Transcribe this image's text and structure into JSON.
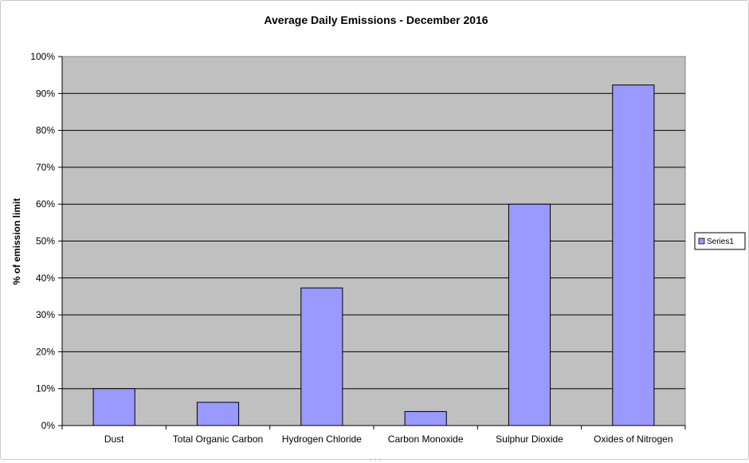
{
  "chart_data": {
    "type": "bar",
    "title": "Average Daily Emissions - December 2016",
    "xlabel": "",
    "ylabel": "% of emission limit",
    "categories": [
      "Dust",
      "Total Organic Carbon",
      "Hydrogen Chloride",
      "Carbon Monoxide",
      "Sulphur Dioxide",
      "Oxides of Nitrogen"
    ],
    "series": [
      {
        "name": "Series1",
        "values": [
          10,
          6.3,
          37.3,
          3.8,
          60,
          92.3
        ]
      }
    ],
    "ylim": [
      0,
      100
    ],
    "yticks": [
      0,
      10,
      20,
      30,
      40,
      50,
      60,
      70,
      80,
      90,
      100
    ],
    "ytick_labels": [
      "0%",
      "10%",
      "20%",
      "30%",
      "40%",
      "50%",
      "60%",
      "70%",
      "80%",
      "90%",
      "100%"
    ],
    "grid": true,
    "legend": "right",
    "colors": {
      "bar_fill": "#9999ff",
      "bar_stroke": "#000000",
      "plot_background": "#c0c0c0",
      "gridline": "#000000"
    }
  }
}
